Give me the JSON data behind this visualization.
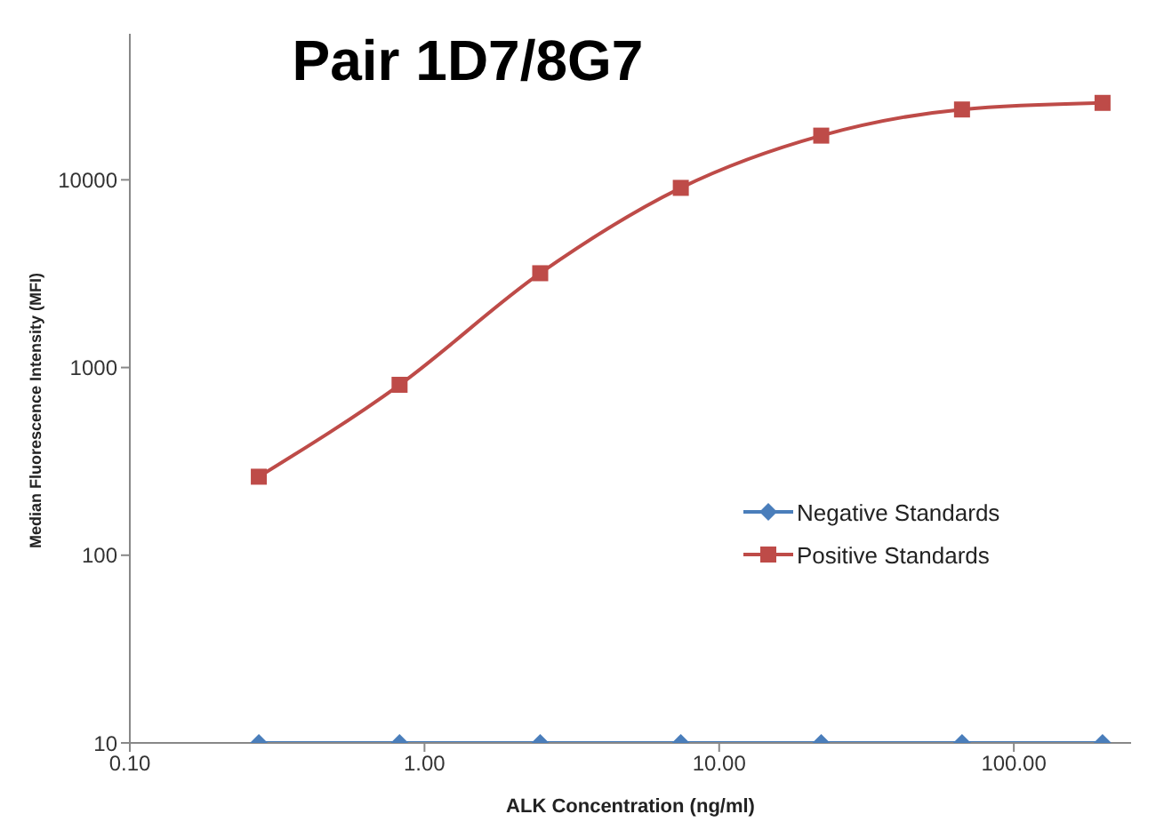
{
  "chart_data": {
    "type": "line",
    "title": "Pair 1D7/8G7",
    "xlabel": "ALK Concentration  (ng/ml)",
    "ylabel": "Median Fluorescence Intensity (MFI)",
    "x": [
      0.274,
      0.823,
      2.47,
      7.41,
      22.2,
      66.7,
      200
    ],
    "series": [
      {
        "name": "Negative Standards",
        "color": "#4a7ebb",
        "marker": "diamond",
        "values": [
          10,
          10,
          10,
          10,
          10,
          10,
          10
        ]
      },
      {
        "name": "Positive Standards",
        "color": "#be4b48",
        "marker": "square",
        "values": [
          262,
          809,
          3180,
          9060,
          17200,
          23700,
          25700
        ]
      }
    ],
    "log": "xy",
    "xlim": [
      0.1,
      250
    ],
    "ylim": [
      10,
      60000
    ],
    "xticks": [
      {
        "value": 0.1,
        "label": "0.10"
      },
      {
        "value": 1,
        "label": "1.00"
      },
      {
        "value": 10,
        "label": "10.00"
      },
      {
        "value": 100,
        "label": "100.00"
      }
    ],
    "yticks": [
      10,
      100,
      1000,
      10000
    ],
    "grid": false,
    "legend": "right",
    "line_style": "solid"
  }
}
